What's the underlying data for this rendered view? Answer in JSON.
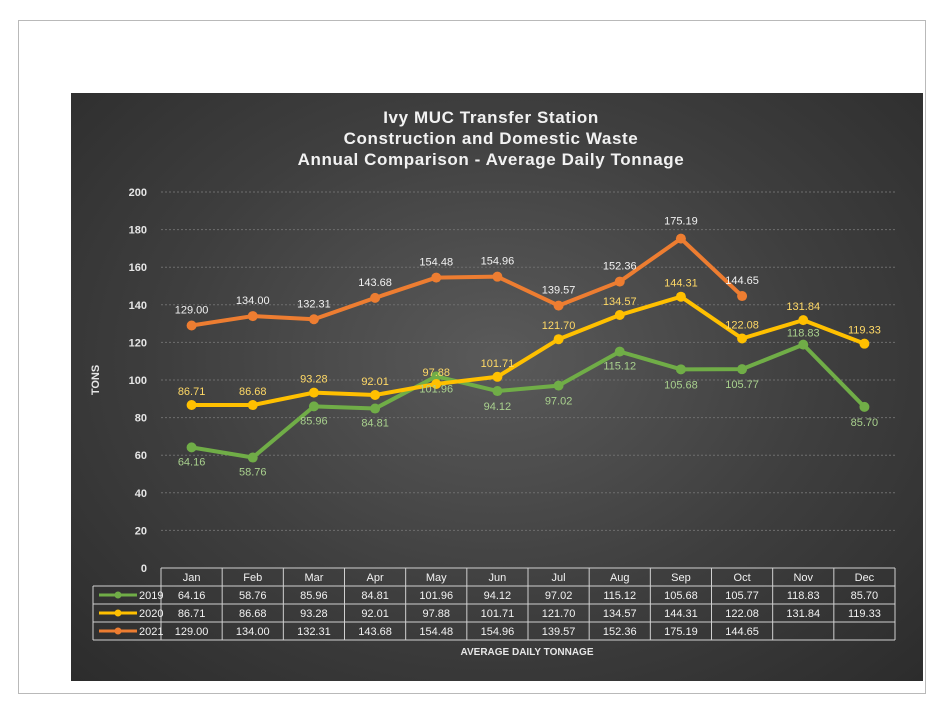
{
  "chart_data": {
    "type": "line",
    "title": [
      "Ivy MUC Transfer Station",
      "Construction and Domestic Waste",
      "Annual Comparison - Average Daily Tonnage"
    ],
    "ylabel": "TONS",
    "xlabel": "AVERAGE DAILY TONNAGE",
    "ylim": [
      0,
      200
    ],
    "yticks": [
      0,
      20,
      40,
      60,
      80,
      100,
      120,
      140,
      160,
      180,
      200
    ],
    "categories": [
      "Jan",
      "Feb",
      "Mar",
      "Apr",
      "May",
      "Jun",
      "Jul",
      "Aug",
      "Sep",
      "Oct",
      "Nov",
      "Dec"
    ],
    "grid": true,
    "legend": "data-table",
    "series": [
      {
        "name": "2019",
        "color": "#70ad47",
        "values": [
          64.16,
          58.76,
          85.96,
          84.81,
          101.96,
          94.12,
          97.02,
          115.12,
          105.68,
          105.77,
          118.83,
          85.7
        ],
        "labels": [
          "64.16",
          "58.76",
          "85.96",
          "84.81",
          "101.96",
          "94.12",
          "97.02",
          "115.12",
          "105.68",
          "105.77",
          "118.83",
          "85.70"
        ]
      },
      {
        "name": "2020",
        "color": "#ffc000",
        "values": [
          86.71,
          86.68,
          93.28,
          92.01,
          97.88,
          101.71,
          121.7,
          134.57,
          144.31,
          122.08,
          131.84,
          119.33
        ],
        "labels": [
          "86.71",
          "86.68",
          "93.28",
          "92.01",
          "97.88",
          "101.71",
          "121.70",
          "134.57",
          "144.31",
          "122.08",
          "131.84",
          "119.33"
        ]
      },
      {
        "name": "2021",
        "color": "#ed7d31",
        "values": [
          129.0,
          134.0,
          132.31,
          143.68,
          154.48,
          154.96,
          139.57,
          152.36,
          175.19,
          144.65,
          null,
          null
        ],
        "labels": [
          "129.00",
          "134.00",
          "132.31",
          "143.68",
          "154.48",
          "154.96",
          "139.57",
          "152.36",
          "175.19",
          "144.65",
          "",
          ""
        ]
      }
    ]
  }
}
